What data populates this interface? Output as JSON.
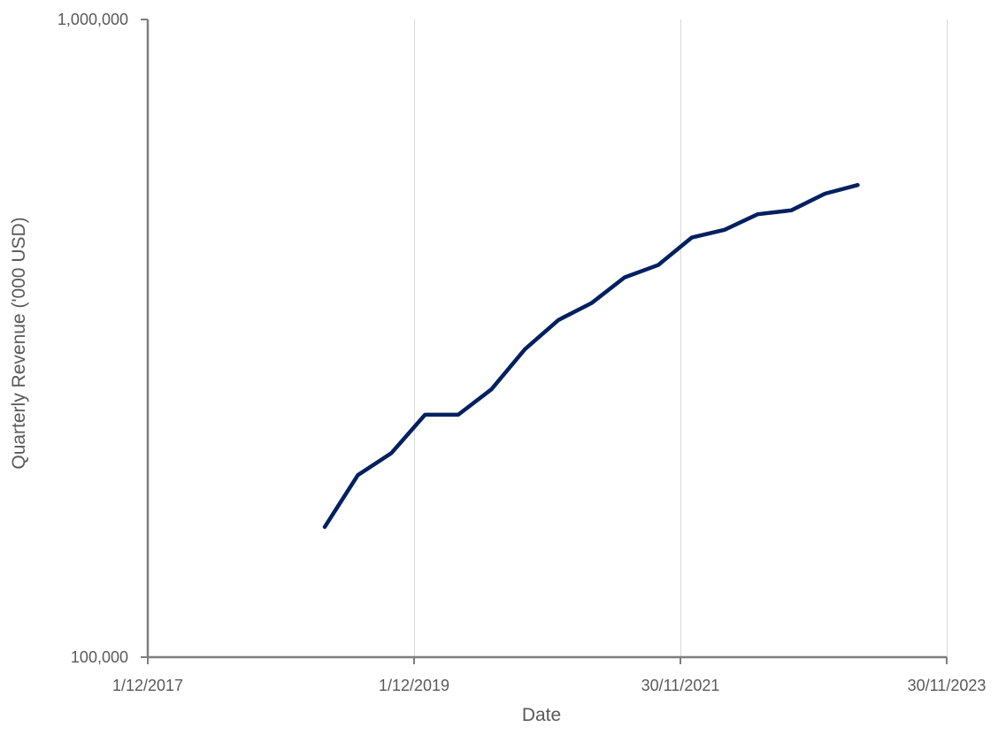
{
  "chart_data": {
    "type": "line",
    "title": "",
    "xlabel": "Date",
    "ylabel": "Quarterly Revenue ('000 USD)",
    "y_scale": "log",
    "ylim": [
      100000,
      1000000
    ],
    "xlim": [
      "2017-12-01",
      "2023-11-30"
    ],
    "y_ticks": [
      100000,
      1000000
    ],
    "y_tick_labels": [
      "100,000",
      "1,000,000"
    ],
    "x_ticks": [
      "2017-12-01",
      "2019-12-01",
      "2021-11-30",
      "2023-11-30"
    ],
    "x_tick_labels": [
      "1/12/2017",
      "1/12/2019",
      "30/11/2021",
      "30/11/2023"
    ],
    "grid": "vertical",
    "legend": "none",
    "line_color": "#002060",
    "axis_color": "#7f7f7f",
    "grid_color": "#d9d9d9",
    "series": [
      {
        "x": [
          "2019-03-31",
          "2019-06-30",
          "2019-09-30",
          "2019-12-31",
          "2020-03-31",
          "2020-06-30",
          "2020-09-30",
          "2020-12-31",
          "2021-03-31",
          "2021-06-30",
          "2021-09-30",
          "2021-12-31",
          "2022-03-31",
          "2022-06-30",
          "2022-09-30",
          "2022-12-31",
          "2023-03-31"
        ],
        "values": [
          160000,
          193000,
          209000,
          240000,
          240000,
          263000,
          304000,
          338000,
          359000,
          394000,
          412000,
          455000,
          468000,
          495000,
          502000,
          533000,
          550000
        ]
      }
    ]
  }
}
